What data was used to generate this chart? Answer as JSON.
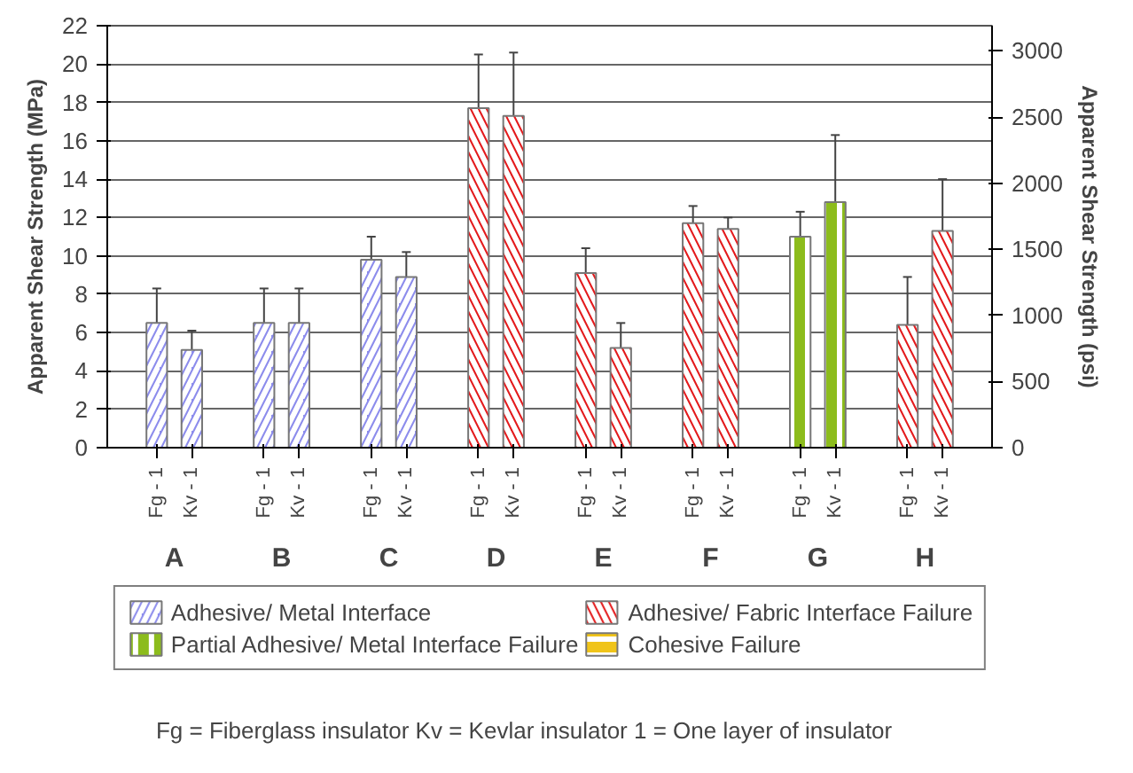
{
  "chart_data": {
    "type": "bar",
    "categories": [
      "Fg - 1",
      "Kv - 1",
      "Fg - 1",
      "Kv - 1",
      "Fg - 1",
      "Kv - 1",
      "Fg - 1",
      "Kv - 1",
      "Fg - 1",
      "Kv - 1",
      "Fg - 1",
      "Kv - 1",
      "Fg - 1",
      "Kv - 1",
      "Fg - 1",
      "Kv - 1"
    ],
    "series": [
      {
        "name": "Adhesive/ Metal Interface",
        "color": "#8c8cec",
        "values": [
          6.5,
          5.1,
          6.5,
          6.5,
          9.8,
          8.9,
          null,
          null,
          null,
          null,
          null,
          null,
          null,
          null,
          null,
          null
        ],
        "errors": [
          [
            4.8,
            8.3
          ],
          [
            4.2,
            6.1
          ],
          [
            4.7,
            8.3
          ],
          [
            4.7,
            8.3
          ],
          [
            8.5,
            11.0
          ],
          [
            7.7,
            10.2
          ],
          null,
          null,
          null,
          null,
          null,
          null,
          null,
          null,
          null,
          null
        ]
      },
      {
        "name": "Adhesive/ Fabric Interface Failure",
        "color": "#e31a1c",
        "values": [
          null,
          null,
          null,
          null,
          null,
          null,
          17.7,
          17.3,
          9.1,
          5.2,
          11.7,
          11.4,
          null,
          null,
          6.4,
          11.3
        ],
        "errors": [
          null,
          null,
          null,
          null,
          null,
          null,
          [
            14.9,
            20.5
          ],
          [
            14.0,
            20.6
          ],
          [
            8.0,
            10.4
          ],
          [
            3.9,
            6.5
          ],
          [
            10.7,
            12.6
          ],
          [
            10.9,
            12.0
          ],
          null,
          null,
          [
            3.6,
            8.9
          ],
          [
            8.6,
            14.0
          ]
        ]
      },
      {
        "name": "Partial Adhesive/ Metal Interface Failure",
        "color": "#8cbc1c",
        "values": [
          null,
          null,
          null,
          null,
          null,
          null,
          null,
          null,
          null,
          null,
          null,
          null,
          11.0,
          12.8,
          null,
          null
        ],
        "errors": [
          null,
          null,
          null,
          null,
          null,
          null,
          null,
          null,
          null,
          null,
          null,
          null,
          [
            9.8,
            12.3
          ],
          [
            9.4,
            16.3
          ],
          null,
          null
        ]
      },
      {
        "name": "Cohesive Failure",
        "color": "#f0c419",
        "values": [
          null,
          null,
          null,
          null,
          null,
          null,
          null,
          null,
          null,
          null,
          null,
          null,
          null,
          null,
          null,
          null
        ]
      }
    ],
    "ylabel": "Apparent Shear Strength (MPa)",
    "y2label": "Apparent Shear Strength (psi)",
    "ylim": [
      0,
      22
    ],
    "yticks": [
      0,
      2,
      4,
      6,
      8,
      10,
      12,
      14,
      16,
      18,
      20,
      22
    ],
    "y2lim": [
      0,
      3191
    ],
    "y2ticks": [
      0,
      500,
      1000,
      1500,
      2000,
      2500,
      3000
    ],
    "grid": "y",
    "legend": "bottom",
    "annotations": [
      "A",
      "B",
      "C",
      "D",
      "E",
      "F",
      "G",
      "H",
      "Fg = Fiberglass insulator    Kv = Kevlar insulator    1   = One layer of insulator"
    ]
  }
}
